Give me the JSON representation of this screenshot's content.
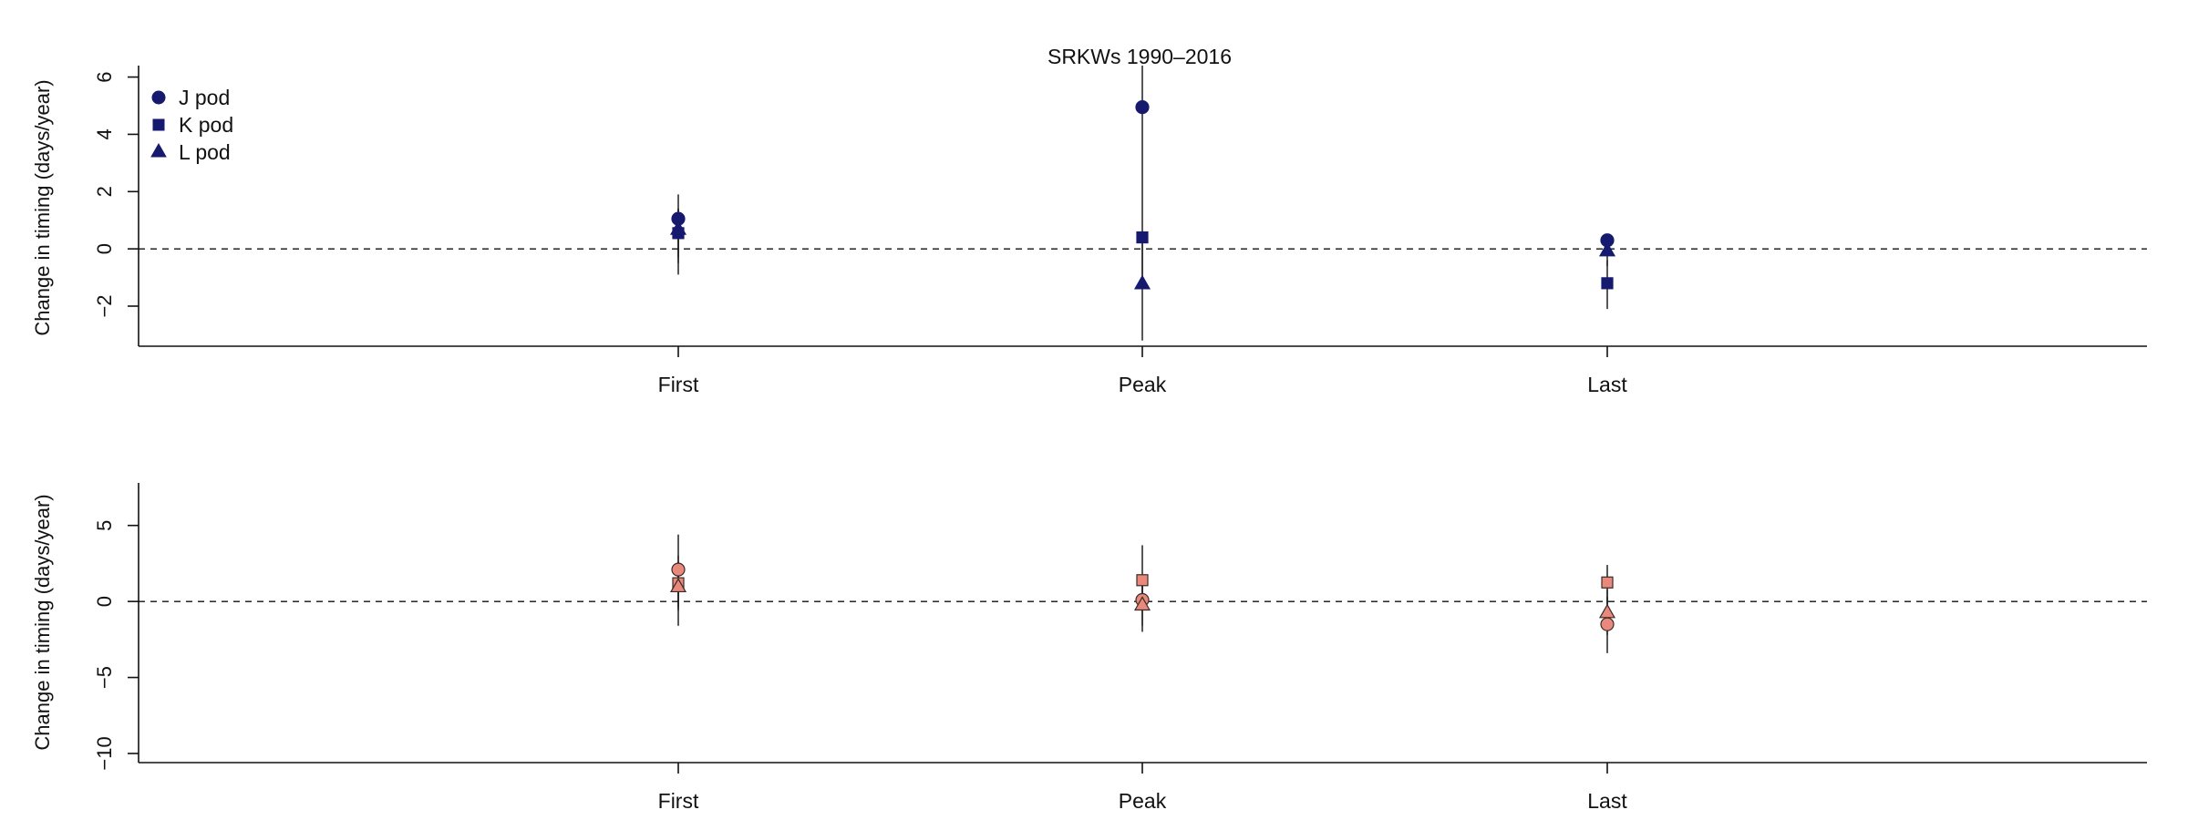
{
  "chart_data": [
    {
      "type": "scatter",
      "title": "SRKWs 1990–2016",
      "ylabel": "Change in timing (days/year)",
      "ylim": [
        -3.4,
        6.4
      ],
      "yticks": [
        -2,
        0,
        2,
        4,
        6
      ],
      "ytick_labels": [
        "−2",
        "0",
        "2",
        "4",
        "6"
      ],
      "categories": [
        "First",
        "Peak",
        "Last"
      ],
      "reference_line": 0,
      "legend": {
        "placement": "top-left",
        "entries": [
          "J pod",
          "K pod",
          "L pod"
        ]
      },
      "series": [
        {
          "name": "J pod",
          "marker": "circle",
          "values": [
            1.05,
            4.95,
            0.3
          ],
          "lower": [
            -0.3,
            2.2,
            -0.2
          ],
          "upper": [
            1.9,
            6.4,
            0.5
          ]
        },
        {
          "name": "K pod",
          "marker": "square",
          "values": [
            0.55,
            0.4,
            -1.2
          ],
          "lower": [
            -0.9,
            -1.0,
            -2.1
          ],
          "upper": [
            1.4,
            2.2,
            -0.4
          ]
        },
        {
          "name": "L pod",
          "marker": "triangle",
          "values": [
            0.7,
            -1.2,
            -0.05
          ],
          "lower": [
            -0.5,
            -3.2,
            -0.6
          ],
          "upper": [
            1.4,
            0.5,
            0.4
          ]
        }
      ]
    },
    {
      "type": "scatter",
      "ylabel": "Change in timing (days/year)",
      "ylim": [
        -10.6,
        7.8
      ],
      "yticks": [
        -10,
        -5,
        0,
        5
      ],
      "ytick_labels": [
        "−10",
        "−5",
        "0",
        "5"
      ],
      "categories": [
        "First",
        "Peak",
        "Last"
      ],
      "reference_line": 0,
      "series": [
        {
          "marker": "circle",
          "values": [
            2.1,
            0.1,
            -1.5
          ],
          "lower": [
            -1.6,
            -2.0,
            -3.4
          ],
          "upper": [
            4.4,
            1.5,
            0.3
          ]
        },
        {
          "marker": "square",
          "values": [
            1.2,
            1.4,
            1.25
          ],
          "lower": [
            -0.4,
            -0.6,
            -0.2
          ],
          "upper": [
            3.0,
            3.7,
            2.4
          ]
        },
        {
          "marker": "triangle",
          "values": [
            1.0,
            -0.2,
            -0.7
          ],
          "lower": [
            -0.6,
            -1.6,
            -2.2
          ],
          "upper": [
            2.6,
            1.2,
            0.8
          ]
        }
      ]
    }
  ],
  "colors": {
    "top_marker": "#151a6e",
    "bottom_marker": "#e9897b",
    "bottom_edge": "#3a2a28",
    "line": "#111111"
  }
}
